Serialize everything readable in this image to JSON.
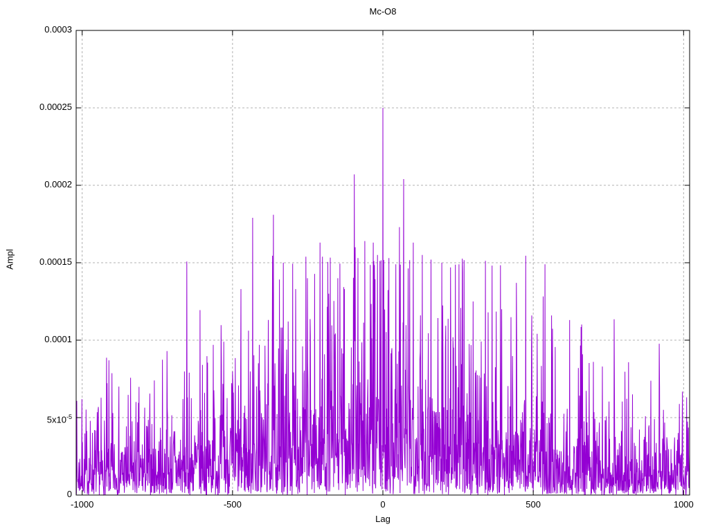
{
  "figure": {
    "title": "Mc-O8",
    "xlabel": "Lag",
    "ylabel": "Ampl"
  },
  "chart_data": {
    "type": "line",
    "title": "Mc-O8",
    "xlabel": "Lag",
    "ylabel": "Ampl",
    "xlim": [
      -1020,
      1020
    ],
    "ylim": [
      0,
      0.0003
    ],
    "xticks": [
      {
        "value": -1000,
        "label": "-1000"
      },
      {
        "value": -500,
        "label": "-500"
      },
      {
        "value": 0,
        "label": "0"
      },
      {
        "value": 500,
        "label": "500"
      },
      {
        "value": 1000,
        "label": "1000"
      }
    ],
    "yticks": [
      {
        "value": 0,
        "label": "0"
      },
      {
        "value": 5e-05,
        "label": "5x10",
        "sup": "-5"
      },
      {
        "value": 0.0001,
        "label": "0.0001"
      },
      {
        "value": 0.00015,
        "label": "0.00015"
      },
      {
        "value": 0.0002,
        "label": "0.0002"
      },
      {
        "value": 0.00025,
        "label": "0.00025"
      },
      {
        "value": 0.0003,
        "label": "0.0003"
      }
    ],
    "grid": true,
    "legend": "none",
    "line_color": "#9400d3",
    "grid_color": "#b0b0b0",
    "axis_color": "#000000",
    "background": "#ffffff",
    "noise_model": {
      "seed": 7,
      "lag_step": 1,
      "floor": 1.55e-05,
      "envelope_amplitude": 3e-05,
      "envelope_width": 520,
      "distribution": "exponential",
      "soft_cap": 0.000148,
      "soft_cap_slope": 0.1,
      "hard_cap": 0.00016
    },
    "peaks": [
      [
        -718,
        9.3e-05
      ],
      [
        -644,
        7.9e-05
      ],
      [
        -600,
        8.4e-05
      ],
      [
        -564,
        9.7e-05
      ],
      [
        -529,
        9.9e-05
      ],
      [
        -433,
        0.000179
      ],
      [
        -364,
        0.000181
      ],
      [
        -331,
        0.00015
      ],
      [
        -290,
        0.000133
      ],
      [
        -251,
        0.00014
      ],
      [
        -209,
        0.000163
      ],
      [
        -180,
        0.00013
      ],
      [
        -150,
        0.00014
      ],
      [
        -128,
        0.000133
      ],
      [
        -95,
        0.000207
      ],
      [
        -83,
        0.000153
      ],
      [
        -60,
        0.000164
      ],
      [
        -32,
        0.000163
      ],
      [
        -18,
        0.000155
      ],
      [
        0,
        0.00025
      ],
      [
        20,
        0.000153
      ],
      [
        43,
        0.000149
      ],
      [
        55,
        0.000173
      ],
      [
        69,
        0.000204
      ],
      [
        101,
        0.000163
      ],
      [
        131,
        0.000155
      ],
      [
        160,
        0.000152
      ],
      [
        196,
        0.00015
      ],
      [
        225,
        0.000147
      ],
      [
        265,
        0.000144
      ],
      [
        300,
        0.000125
      ],
      [
        350,
        0.000118
      ],
      [
        395,
        0.00012
      ],
      [
        444,
        0.000137
      ],
      [
        495,
        0.000116
      ],
      [
        561,
        0.000116
      ],
      [
        621,
        0.000113
      ],
      [
        700,
        8.6e-05
      ],
      [
        730,
        8.3e-05
      ],
      [
        830,
        6.5e-05
      ],
      [
        920,
        7e-05
      ]
    ]
  }
}
